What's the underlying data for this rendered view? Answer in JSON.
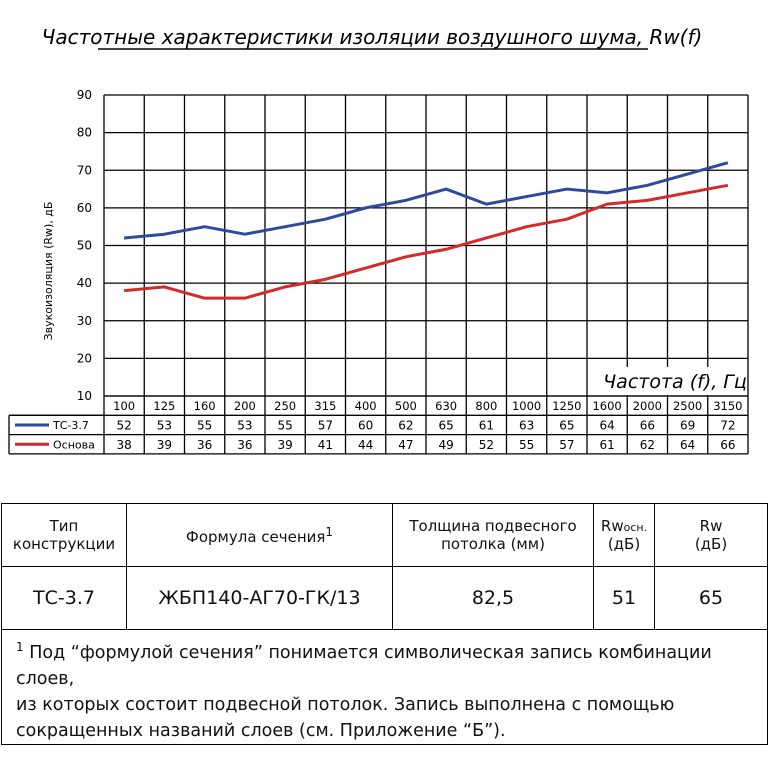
{
  "chart_data": {
    "type": "line",
    "title": "Частотные характеристики изоляции воздушного шума, Rw(f)",
    "ylabel": "Звукоизоляция (Rw), дБ",
    "xlabel": "Частота (f), Гц",
    "ylim": [
      10,
      90
    ],
    "yticks": [
      "90",
      "80",
      "70",
      "60",
      "50",
      "40",
      "30",
      "20",
      "10"
    ],
    "grid": true,
    "legend": "table-below-axis",
    "categories": [
      "100",
      "125",
      "160",
      "200",
      "250",
      "315",
      "400",
      "500",
      "630",
      "800",
      "1000",
      "1250",
      "1600",
      "2000",
      "2500",
      "3150"
    ],
    "series": [
      {
        "name": "ТС-3.7",
        "color": "#2e4a9e",
        "values": [
          52,
          53,
          55,
          53,
          55,
          57,
          60,
          62,
          65,
          61,
          63,
          65,
          64,
          66,
          69,
          72
        ],
        "labels": [
          "52",
          "53",
          "55",
          "53",
          "55",
          "57",
          "60",
          "62",
          "65",
          "61",
          "63",
          "65",
          "64",
          "66",
          "69",
          "72"
        ]
      },
      {
        "name": "Основа",
        "color": "#d42a2a",
        "values": [
          38,
          39,
          36,
          36,
          39,
          41,
          44,
          47,
          49,
          52,
          55,
          57,
          61,
          62,
          64,
          66
        ],
        "labels": [
          "38",
          "39",
          "36",
          "36",
          "39",
          "41",
          "44",
          "47",
          "49",
          "52",
          "55",
          "57",
          "61",
          "62",
          "64",
          "66"
        ]
      }
    ]
  },
  "table": {
    "headers": {
      "type_line1": "Тип",
      "type_line2": "конструкции",
      "formula": "Формула сечения",
      "formula_sup": "1",
      "thickness_line1": "Толщина подвесного",
      "thickness_line2": "потолка (мм)",
      "rwosn_main": "Rw",
      "rwosn_sub": "осн.",
      "rwosn_unit": "(дБ)",
      "rw_line1": "Rw",
      "rw_line2": "(дБ)"
    },
    "row": {
      "type": "ТС-3.7",
      "formula": "ЖБП140-АГ70-ГК/13",
      "thickness": "82,5",
      "rwosn": "51",
      "rw": "65"
    },
    "footnote_sup": "1",
    "footnote_line1": "Под “формулой сечения” понимается символическая запись комбинации слоев,",
    "footnote_line2": "из которых состоит подвесной потолок. Запись выполнена с помощью",
    "footnote_line3": "сокращенных названий слоев (см. Приложение “Б”)."
  }
}
